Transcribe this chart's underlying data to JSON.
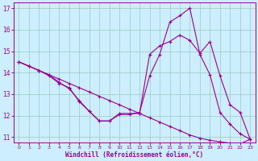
{
  "xlabel": "Windchill (Refroidissement éolien,°C)",
  "bg_color": "#cceeff",
  "grid_color": "#99ccbb",
  "line_color": "#990099",
  "xlim": [
    -0.5,
    23.5
  ],
  "ylim": [
    10.75,
    17.25
  ],
  "yticks": [
    11,
    12,
    13,
    14,
    15,
    16,
    17
  ],
  "xticks": [
    0,
    1,
    2,
    3,
    4,
    5,
    6,
    7,
    8,
    9,
    10,
    11,
    12,
    13,
    14,
    15,
    16,
    17,
    18,
    19,
    20,
    21,
    22,
    23
  ],
  "line1_x": [
    0,
    1,
    2,
    3,
    4,
    5,
    6,
    7,
    8,
    9,
    10,
    11,
    12,
    13,
    14,
    15,
    16,
    17,
    18,
    19,
    20,
    21,
    22,
    23
  ],
  "line1_y": [
    14.5,
    14.3,
    14.1,
    13.9,
    13.7,
    13.5,
    13.3,
    13.1,
    12.9,
    12.7,
    12.5,
    12.3,
    12.1,
    11.9,
    11.7,
    11.5,
    11.3,
    11.1,
    10.95,
    10.85,
    10.78,
    10.72,
    10.68,
    10.9
  ],
  "line2_x": [
    0,
    1,
    2,
    3,
    4,
    5,
    6,
    7,
    8,
    9,
    10,
    11,
    12,
    13,
    14,
    15,
    16,
    17,
    18,
    19,
    20,
    21,
    22,
    23
  ],
  "line2_y": [
    14.5,
    14.3,
    14.1,
    13.85,
    13.5,
    13.3,
    12.65,
    12.2,
    11.75,
    11.75,
    12.05,
    12.05,
    12.15,
    13.85,
    14.85,
    16.35,
    16.65,
    17.0,
    14.85,
    13.9,
    12.15,
    11.6,
    11.15,
    10.9
  ],
  "line3_x": [
    0,
    1,
    2,
    3,
    4,
    5,
    6,
    7,
    8,
    9,
    10,
    11,
    12,
    13,
    14,
    15,
    16,
    17,
    18,
    19,
    20,
    21,
    22,
    23
  ],
  "line3_y": [
    14.5,
    14.3,
    14.1,
    13.9,
    13.55,
    13.25,
    12.7,
    12.2,
    11.75,
    11.75,
    12.1,
    12.1,
    12.1,
    14.85,
    15.25,
    15.45,
    15.75,
    15.5,
    14.9,
    15.45,
    13.85,
    12.5,
    12.15,
    10.9
  ]
}
